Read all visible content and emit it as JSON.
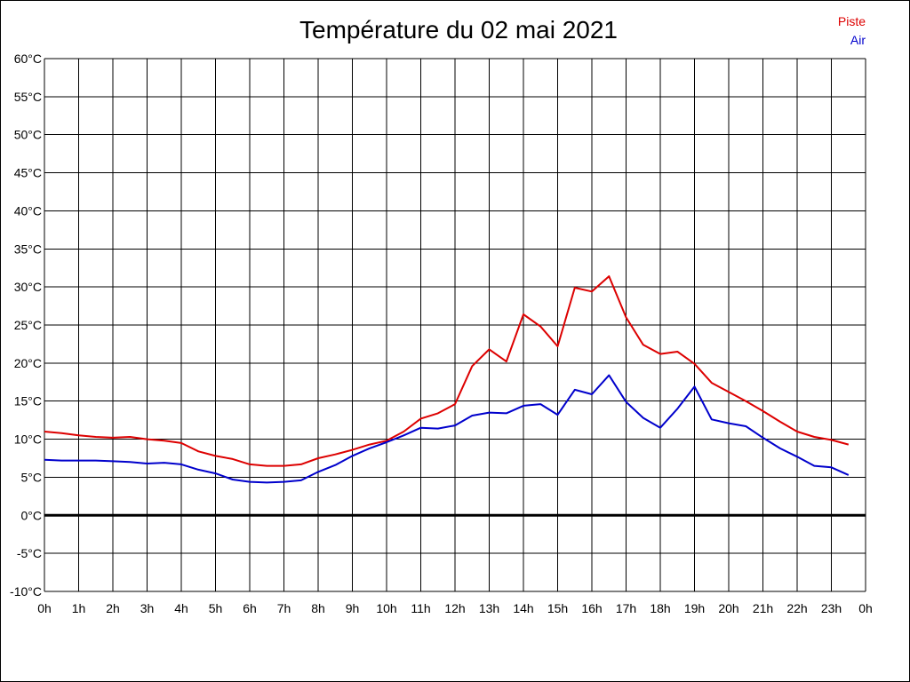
{
  "chart_data": {
    "type": "line",
    "title": "Température du 02 mai 2021",
    "ylim": [
      -10,
      60
    ],
    "y_ticks": [
      "60°C",
      "55°C",
      "50°C",
      "45°C",
      "40°C",
      "35°C",
      "30°C",
      "25°C",
      "20°C",
      "15°C",
      "10°C",
      "5°C",
      "0°C",
      "-5°C",
      "-10°C"
    ],
    "x_ticks": [
      "0h",
      "1h",
      "2h",
      "3h",
      "4h",
      "5h",
      "6h",
      "7h",
      "8h",
      "9h",
      "10h",
      "11h",
      "12h",
      "13h",
      "14h",
      "15h",
      "16h",
      "17h",
      "18h",
      "19h",
      "20h",
      "21h",
      "22h",
      "23h",
      "0h"
    ],
    "grid": true,
    "legend_position": "top-right",
    "zero_line_color": "#000000",
    "x": [
      0,
      0.5,
      1,
      1.5,
      2,
      2.5,
      3,
      3.5,
      4,
      4.5,
      5,
      5.5,
      6,
      6.5,
      7,
      7.5,
      8,
      8.5,
      9,
      9.5,
      10,
      10.5,
      11,
      11.5,
      12,
      12.5,
      13,
      13.5,
      14,
      14.5,
      15,
      15.5,
      16,
      16.5,
      17,
      17.5,
      18,
      18.5,
      19,
      19.5,
      20,
      20.5,
      21,
      21.5,
      22,
      22.5,
      23,
      23.5
    ],
    "series": [
      {
        "name": "Piste",
        "color": "#dd0000",
        "values": [
          11.0,
          10.8,
          10.5,
          10.3,
          10.2,
          10.3,
          10.0,
          9.8,
          9.5,
          8.4,
          7.8,
          7.4,
          6.7,
          6.5,
          6.5,
          6.7,
          7.5,
          8.0,
          8.6,
          9.3,
          9.8,
          11.0,
          12.7,
          13.4,
          14.6,
          19.6,
          21.8,
          20.2,
          26.4,
          24.8,
          22.2,
          29.9,
          29.4,
          31.4,
          26.0,
          22.4,
          21.2,
          21.5,
          19.9,
          17.4,
          16.2,
          15.0,
          13.7,
          12.3,
          11.0,
          10.3,
          9.9,
          9.3
        ]
      },
      {
        "name": "Air",
        "color": "#0000cc",
        "values": [
          7.3,
          7.2,
          7.2,
          7.2,
          7.1,
          7.0,
          6.8,
          6.9,
          6.7,
          6.0,
          5.5,
          4.7,
          4.4,
          4.3,
          4.4,
          4.6,
          5.7,
          6.6,
          7.8,
          8.8,
          9.6,
          10.5,
          11.5,
          11.4,
          11.8,
          13.1,
          13.5,
          13.4,
          14.4,
          14.6,
          13.2,
          16.5,
          15.9,
          18.4,
          14.9,
          12.8,
          11.5,
          14.0,
          16.9,
          12.6,
          12.1,
          11.7,
          10.2,
          8.8,
          7.7,
          6.5,
          6.3,
          5.3
        ]
      }
    ]
  }
}
